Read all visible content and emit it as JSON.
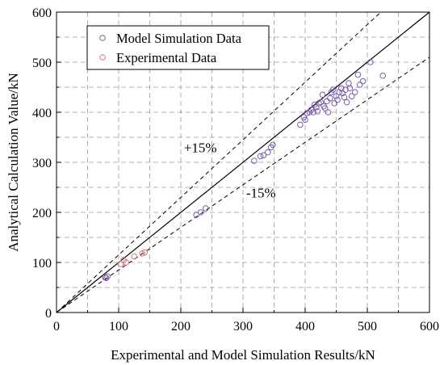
{
  "chart_data": {
    "type": "scatter",
    "xlabel": "Experimental and Model Simulation Results/kN",
    "ylabel": "Analytical Calculation Value/kN",
    "xlim": [
      0,
      600
    ],
    "ylim": [
      0,
      600
    ],
    "xticks": [
      "0",
      "100",
      "200",
      "300",
      "400",
      "500",
      "600"
    ],
    "yticks": [
      "0",
      "100",
      "200",
      "300",
      "400",
      "500",
      "600"
    ],
    "grid": true,
    "legend_position": "top-left",
    "reference_lines": [
      {
        "name": "y=x",
        "slope": 1.0,
        "style": "solid"
      },
      {
        "name": "+15%",
        "slope": 1.15,
        "style": "dashed"
      },
      {
        "name": "-15%",
        "slope": 0.85,
        "style": "dashed"
      }
    ],
    "annotations": [
      {
        "text": "+15%",
        "x": 205,
        "y": 320
      },
      {
        "text": "-15%",
        "x": 305,
        "y": 230
      }
    ],
    "series": [
      {
        "name": "Model Simulation Data",
        "color": "#7b5cab",
        "marker": "open-circle",
        "points": [
          [
            78,
            70
          ],
          [
            80,
            69
          ],
          [
            82,
            72
          ],
          [
            225,
            195
          ],
          [
            232,
            200
          ],
          [
            240,
            208
          ],
          [
            318,
            303
          ],
          [
            328,
            312
          ],
          [
            333,
            314
          ],
          [
            340,
            320
          ],
          [
            345,
            330
          ],
          [
            348,
            335
          ],
          [
            392,
            375
          ],
          [
            398,
            390
          ],
          [
            400,
            385
          ],
          [
            403,
            398
          ],
          [
            407,
            400
          ],
          [
            410,
            405
          ],
          [
            413,
            400
          ],
          [
            415,
            415
          ],
          [
            418,
            410
          ],
          [
            420,
            402
          ],
          [
            422,
            418
          ],
          [
            425,
            420
          ],
          [
            428,
            435
          ],
          [
            430,
            412
          ],
          [
            432,
            408
          ],
          [
            435,
            422
          ],
          [
            437,
            400
          ],
          [
            440,
            428
          ],
          [
            442,
            440
          ],
          [
            445,
            445
          ],
          [
            447,
            418
          ],
          [
            450,
            432
          ],
          [
            452,
            425
          ],
          [
            455,
            440
          ],
          [
            458,
            448
          ],
          [
            460,
            438
          ],
          [
            463,
            430
          ],
          [
            465,
            445
          ],
          [
            467,
            420
          ],
          [
            470,
            458
          ],
          [
            472,
            448
          ],
          [
            475,
            432
          ],
          [
            480,
            440
          ],
          [
            485,
            475
          ],
          [
            488,
            455
          ],
          [
            493,
            462
          ],
          [
            505,
            500
          ],
          [
            525,
            473
          ]
        ]
      },
      {
        "name": "Experimental Data",
        "color": "#d9757f",
        "marker": "open-circle",
        "points": [
          [
            103,
            97
          ],
          [
            108,
            105
          ],
          [
            112,
            100
          ],
          [
            125,
            112
          ],
          [
            138,
            118
          ],
          [
            142,
            120
          ]
        ]
      }
    ]
  }
}
